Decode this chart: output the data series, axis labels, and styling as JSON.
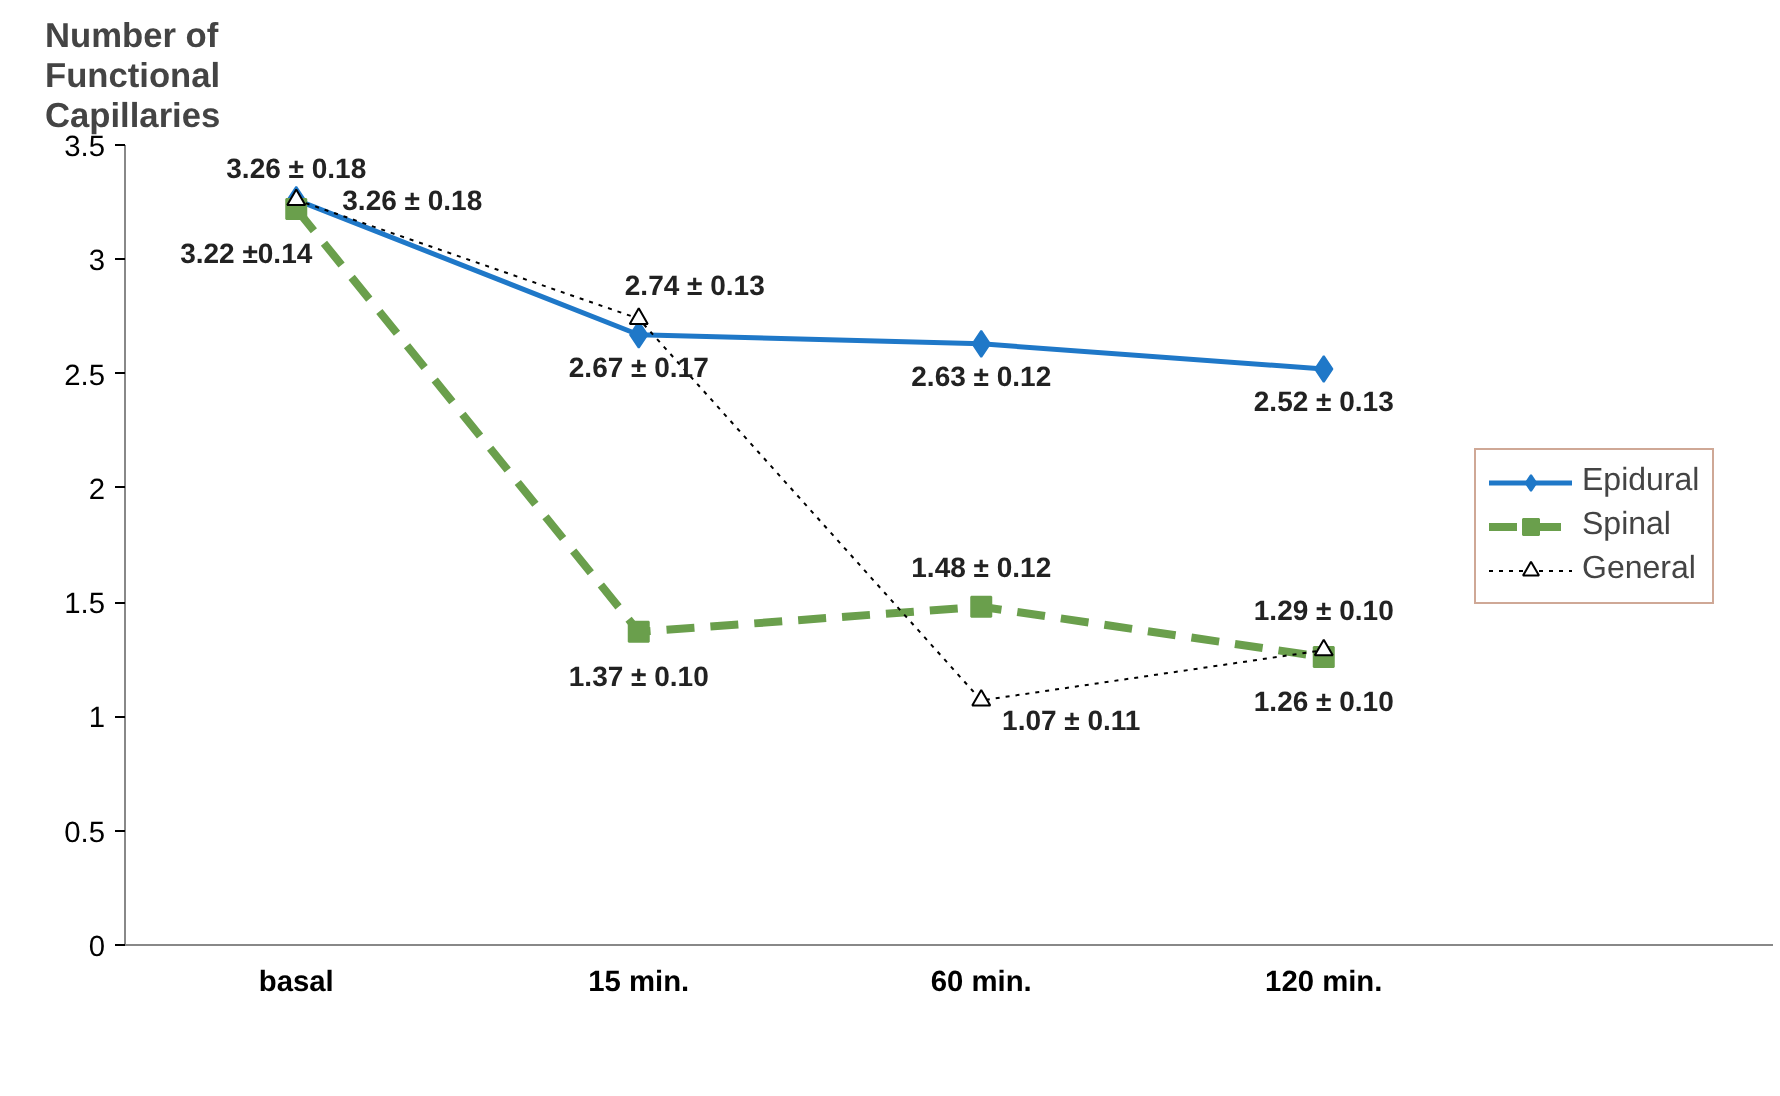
{
  "chart_data": {
    "type": "line",
    "ylabel": "Number of\nFunctional\nCapillaries",
    "categories": [
      "basal",
      "15 min.",
      "60 min.",
      "120 min."
    ],
    "ylim": [
      0,
      3.5
    ],
    "yticks": [
      0,
      0.5,
      1,
      1.5,
      2,
      2.5,
      3,
      3.5
    ],
    "grid": false,
    "legend": "right",
    "series": [
      {
        "name": "Epidural",
        "color": "#1f78c8",
        "marker": "diamond",
        "line_style": "solid",
        "values": [
          3.26,
          2.67,
          2.63,
          2.52
        ],
        "value_labels": [
          "3.26 ± 0.18",
          "2.67 ± 0.17",
          "2.63 ± 0.12",
          "2.52 ± 0.13"
        ]
      },
      {
        "name": "Spinal",
        "color": "#6a9f4c",
        "marker": "square",
        "line_style": "dashed",
        "values": [
          3.22,
          1.37,
          1.48,
          1.26
        ],
        "value_labels": [
          "3.22 ±0.14",
          "1.37 ± 0.10",
          "1.48 ± 0.12",
          "1.26 ± 0.10"
        ]
      },
      {
        "name": "General",
        "color": "#000000",
        "marker": "triangle",
        "line_style": "dotted",
        "values": [
          3.26,
          2.74,
          1.07,
          1.29
        ],
        "value_labels": [
          "3.26 ± 0.18",
          "2.74 ± 0.13",
          "1.07 ± 0.11",
          "1.29 ± 0.10"
        ]
      }
    ]
  }
}
